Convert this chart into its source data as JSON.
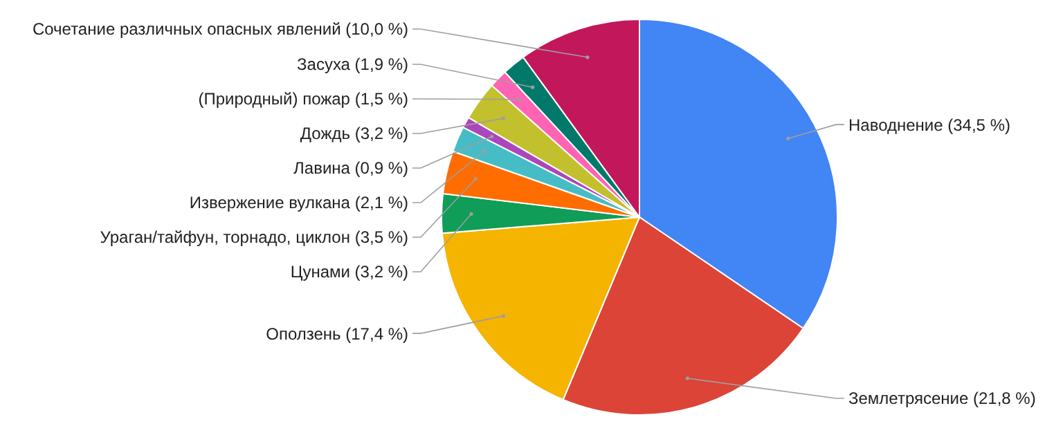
{
  "chart_data": {
    "type": "pie",
    "categories": [
      "Наводнение",
      "Землетрясение",
      "Оползень",
      "Цунами",
      "Ураган/тайфун, торнадо, циклон",
      "Извержение вулкана",
      "Лавина",
      "Дождь",
      "(Природный) пожар",
      "Засуха",
      "Сочетание различных опасных явлений"
    ],
    "values": [
      34.5,
      21.8,
      17.4,
      3.2,
      3.5,
      2.1,
      0.9,
      3.2,
      1.5,
      1.9,
      10.0
    ],
    "value_labels": [
      "(34,5 %)",
      "(21,8 %)",
      "(17,4 %)",
      "(3,2 %)",
      "(3,5 %)",
      "(2,1 %)",
      "(0,9 %)",
      "(3,2 %)",
      "(1,5 %)",
      "(1,9 %)",
      "(10,0 %)"
    ],
    "colors": [
      "#4285f4",
      "#db4437",
      "#f4b400",
      "#0f9d58",
      "#ff6d01",
      "#46bdc6",
      "#ab47bc",
      "#c2c02c",
      "#ff63b4",
      "#00796b",
      "#c2185b"
    ]
  }
}
